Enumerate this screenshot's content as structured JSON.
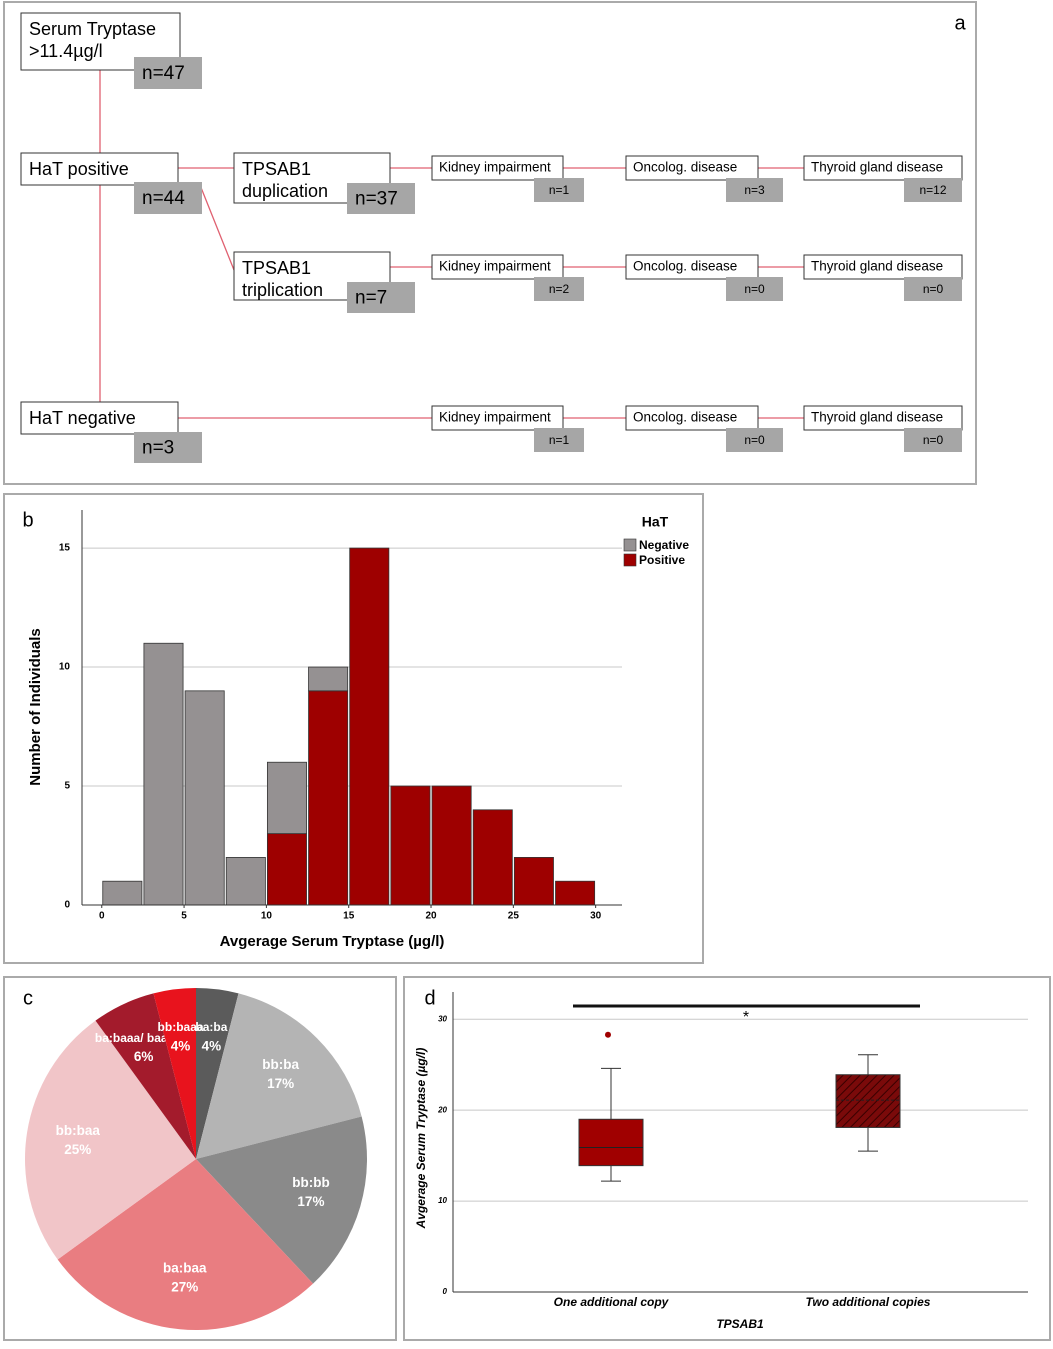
{
  "diagram": {
    "panel_label": "a",
    "nodes": [
      {
        "label": [
          "Serum Tryptase",
          ">11.4µg/l"
        ],
        "count": "n=47"
      },
      {
        "label": [
          "HaT positive"
        ],
        "count": "n=44"
      },
      {
        "label": [
          "TPSAB1",
          "duplication"
        ],
        "count": "n=37"
      },
      {
        "label": [
          "TPSAB1",
          "triplication"
        ],
        "count": "n=7"
      },
      {
        "label": [
          "HaT negative"
        ],
        "count": "n=3"
      }
    ],
    "outcomes": [
      [
        {
          "label": "Kidney impairment",
          "count": "n=1"
        },
        {
          "label": "Oncolog. disease",
          "count": "n=3"
        },
        {
          "label": "Thyroid gland disease",
          "count": "n=12"
        }
      ],
      [
        {
          "label": "Kidney impairment",
          "count": "n=2"
        },
        {
          "label": "Oncolog. disease",
          "count": "n=0"
        },
        {
          "label": "Thyroid gland disease",
          "count": "n=0"
        }
      ],
      [
        {
          "label": "Kidney impairment",
          "count": "n=1"
        },
        {
          "label": "Oncolog. disease",
          "count": "n=0"
        },
        {
          "label": "Thyroid gland disease",
          "count": "n=0"
        }
      ]
    ]
  },
  "chart_data": [
    {
      "type": "histogram",
      "panel_label": "b",
      "stacked": true,
      "grid": true,
      "x_label": "Avgerage Serum Tryptase (µg/l)",
      "y_label": "Number of Individuals",
      "legend_title": "HaT",
      "legend": "upper right",
      "bins": [
        0,
        2.5,
        5,
        7.5,
        10,
        12.5,
        15,
        17.5,
        20,
        22.5,
        25,
        27.5,
        30
      ],
      "series": [
        {
          "name": "Negative",
          "color": "#959192",
          "values": [
            1,
            11,
            9,
            2,
            3,
            1,
            0,
            0,
            0,
            0,
            0,
            0
          ]
        },
        {
          "name": "Positive",
          "color": "#9e0000",
          "values": [
            0,
            0,
            0,
            0,
            3,
            9,
            15,
            5,
            5,
            4,
            2,
            1
          ]
        }
      ],
      "xlim": [
        -1.2,
        31.6
      ],
      "xticks": [
        0,
        5,
        10,
        15,
        20,
        25,
        30
      ],
      "ylim": [
        0,
        16.6
      ],
      "yticks": [
        0,
        5,
        10,
        15
      ]
    },
    {
      "type": "pie",
      "panel_label": "c",
      "categories": [
        "ba:ba",
        "bb:ba",
        "bb:bb",
        "ba:baa",
        "bb:baa",
        "ba:baaa/ baa:baa",
        "bb:baaa"
      ],
      "values": [
        4,
        17,
        17,
        27,
        25,
        6,
        4
      ],
      "value_labels": [
        "4%",
        "17%",
        "17%",
        "27%",
        "25%",
        "6%",
        "4%"
      ],
      "colors": [
        "#5b5b5b",
        "#b4b4b4",
        "#8a8a8a",
        "#e97d81",
        "#f1c5c8",
        "#a31b2c",
        "#e8131d"
      ]
    },
    {
      "type": "box",
      "panel_label": "d",
      "grid": true,
      "x_label": "TPSAB1",
      "y_label": "Avgerage Serum Tryptase (µg/l)",
      "categories": [
        "One additional copy",
        "Two additional copies"
      ],
      "boxes": [
        {
          "whislo": 12.2,
          "q1": 13.9,
          "med": 15.9,
          "q3": 19.0,
          "whishi": 24.6,
          "fliers": [
            28.3
          ]
        },
        {
          "whislo": 15.5,
          "q1": 18.1,
          "med": 21.1,
          "q3": 23.9,
          "whishi": 26.1,
          "fliers": []
        }
      ],
      "colors": [
        "#a00000",
        "#7a0a0a"
      ],
      "hatch": [
        false,
        true
      ],
      "annotation": "*",
      "ylim": [
        0,
        33
      ],
      "yticks": [
        0,
        10,
        20,
        30
      ]
    }
  ]
}
